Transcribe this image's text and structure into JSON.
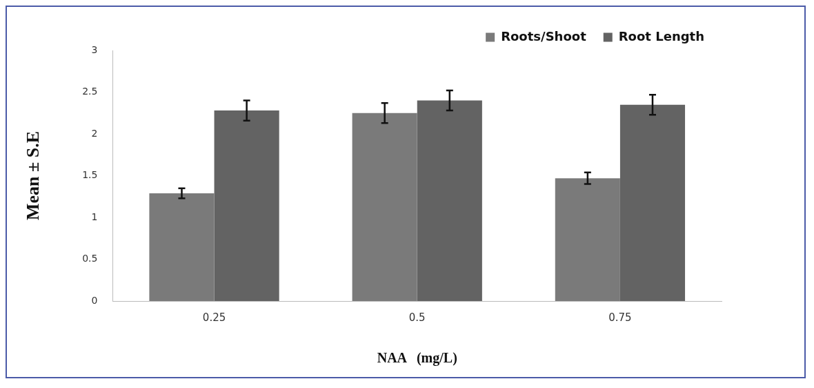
{
  "chart_data": {
    "type": "bar",
    "xlabel": "NAA   (mg/L)",
    "ylabel": "Mean ± S.E",
    "categories": [
      "0.25",
      "0.5",
      "0.75"
    ],
    "series": [
      {
        "name": "Roots/Shoot",
        "color": "#7a7a7a",
        "values": [
          1.29,
          2.25,
          1.47
        ],
        "errors": [
          0.06,
          0.12,
          0.07
        ]
      },
      {
        "name": "Root Length",
        "color": "#636363",
        "values": [
          2.28,
          2.4,
          2.35
        ],
        "errors": [
          0.12,
          0.12,
          0.12
        ]
      }
    ],
    "ylim": [
      0,
      3
    ],
    "yticks": [
      0,
      0.5,
      1,
      1.5,
      2,
      2.5,
      3
    ],
    "grid": false,
    "legend": "top right"
  }
}
